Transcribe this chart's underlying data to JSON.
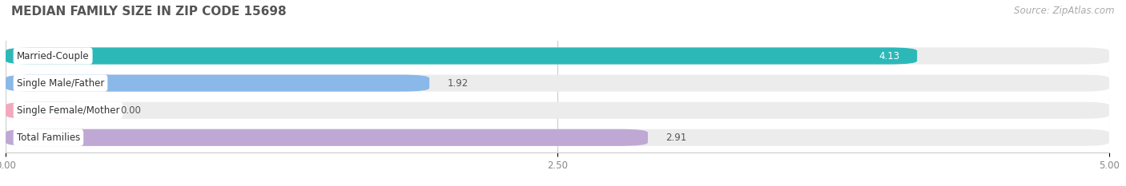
{
  "title": "MEDIAN FAMILY SIZE IN ZIP CODE 15698",
  "source": "Source: ZipAtlas.com",
  "categories": [
    "Married-Couple",
    "Single Male/Father",
    "Single Female/Mother",
    "Total Families"
  ],
  "values": [
    4.13,
    1.92,
    0.0,
    2.91
  ],
  "colors": [
    "#2db8b8",
    "#8ab8e8",
    "#f4a8bc",
    "#c0a8d4"
  ],
  "xlim": [
    0,
    5.0
  ],
  "xticks": [
    0.0,
    2.5,
    5.0
  ],
  "xtick_labels": [
    "0.00",
    "2.50",
    "5.00"
  ],
  "bar_height": 0.62,
  "bar_gap": 0.38,
  "background_color": "#ffffff",
  "bar_bg_color": "#ececec",
  "title_fontsize": 11,
  "label_fontsize": 8.5,
  "value_fontsize": 8.5,
  "source_fontsize": 8.5,
  "value_colors": [
    "#ffffff",
    "#555555",
    "#555555",
    "#555555"
  ],
  "value_inside": [
    true,
    false,
    false,
    false
  ],
  "female_bar_value": 0.4
}
